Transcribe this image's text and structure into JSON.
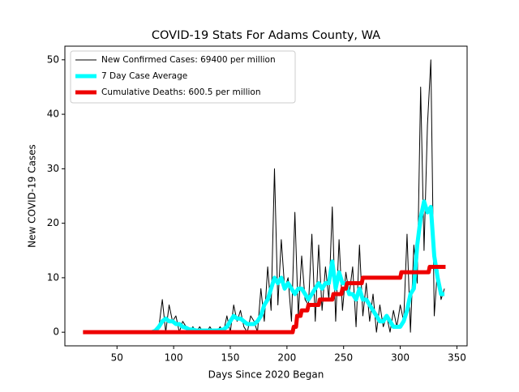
{
  "chart_data": {
    "type": "line",
    "title": "COVID-19 Stats For Adams County, WA",
    "xlabel": "Days Since 2020 Began",
    "ylabel": "New COVID-19 Cases",
    "xlim": [
      4,
      359
    ],
    "ylim": [
      -2.5,
      52.5
    ],
    "xticks": [
      50,
      100,
      150,
      200,
      250,
      300,
      350
    ],
    "yticks": [
      0,
      10,
      20,
      30,
      40,
      50
    ],
    "grid": false,
    "legend": "upper-left",
    "series": [
      {
        "name": "New Confirmed Cases: 69400 per million",
        "color": "#000000",
        "width": 1,
        "x": [
          81,
          84,
          87,
          90,
          93,
          96,
          99,
          102,
          105,
          108,
          111,
          114,
          117,
          120,
          123,
          126,
          129,
          132,
          135,
          138,
          141,
          144,
          147,
          150,
          153,
          156,
          159,
          162,
          165,
          168,
          171,
          174,
          177,
          180,
          183,
          186,
          189,
          192,
          195,
          198,
          201,
          204,
          207,
          210,
          213,
          216,
          219,
          222,
          225,
          228,
          231,
          234,
          237,
          240,
          243,
          246,
          249,
          252,
          255,
          258,
          261,
          264,
          267,
          270,
          273,
          276,
          279,
          282,
          285,
          288,
          291,
          294,
          297,
          300,
          303,
          306,
          309,
          312,
          315,
          318,
          321,
          324,
          327,
          330,
          333,
          336,
          339
        ],
        "values": [
          0,
          0,
          1,
          6,
          0,
          5,
          2,
          3,
          0,
          2,
          1,
          0,
          1,
          0,
          1,
          0,
          0,
          1,
          0,
          0,
          1,
          0,
          3,
          0,
          5,
          2,
          4,
          1,
          0,
          3,
          2,
          0,
          8,
          2,
          12,
          4,
          30,
          5,
          17,
          8,
          10,
          2,
          22,
          3,
          14,
          6,
          5,
          18,
          2,
          16,
          4,
          12,
          6,
          23,
          2,
          17,
          4,
          11,
          7,
          12,
          1,
          16,
          3,
          9,
          2,
          7,
          0,
          5,
          1,
          3,
          0,
          4,
          1,
          5,
          2,
          18,
          0,
          16,
          9,
          45,
          15,
          38,
          50,
          3,
          12,
          6,
          8
        ]
      },
      {
        "name": "7 Day Case Average",
        "color": "#00ffff",
        "width": 5,
        "x": [
          81,
          84,
          87,
          90,
          93,
          96,
          99,
          102,
          105,
          108,
          111,
          114,
          117,
          120,
          123,
          126,
          129,
          132,
          135,
          138,
          141,
          144,
          147,
          150,
          153,
          156,
          159,
          162,
          165,
          168,
          171,
          174,
          177,
          180,
          183,
          186,
          189,
          192,
          195,
          198,
          201,
          204,
          207,
          210,
          213,
          216,
          219,
          222,
          225,
          228,
          231,
          234,
          237,
          240,
          243,
          246,
          249,
          252,
          255,
          258,
          261,
          264,
          267,
          270,
          273,
          276,
          279,
          282,
          285,
          288,
          291,
          294,
          297,
          300,
          303,
          306,
          309,
          312,
          315,
          318,
          321,
          324,
          327,
          330,
          333,
          336,
          339
        ],
        "values": [
          0,
          0.3,
          1,
          2,
          2.5,
          2,
          2,
          1.5,
          1.5,
          1,
          0.8,
          0.5,
          0.5,
          0.3,
          0.3,
          0.3,
          0.3,
          0.3,
          0.3,
          0.3,
          0.4,
          0.5,
          1,
          2,
          3,
          2.5,
          2.5,
          2,
          1.5,
          1.5,
          1.5,
          2,
          3,
          5,
          6,
          8,
          10,
          9,
          10,
          8,
          9,
          8,
          7,
          8,
          8,
          7,
          6,
          7,
          8,
          9,
          8,
          9,
          9,
          13,
          8,
          11,
          9,
          9,
          7,
          7,
          6,
          8,
          6,
          6,
          5,
          4,
          3,
          2,
          2,
          3,
          2,
          1,
          1,
          1,
          2,
          4,
          7,
          8,
          16,
          21,
          24,
          22,
          23,
          14,
          10,
          7,
          7
        ]
      },
      {
        "name": "Cumulative Deaths: 600.5 per million",
        "color": "#ee0000",
        "width": 5,
        "x": [
          20,
          205,
          206,
          208,
          209,
          212,
          213,
          218,
          219,
          228,
          229,
          240,
          241,
          248,
          249,
          252,
          253,
          266,
          267,
          300,
          301,
          325,
          326,
          340
        ],
        "values": [
          0,
          0,
          1,
          1,
          3,
          3,
          4,
          4,
          5,
          5,
          6,
          6,
          7,
          7,
          8,
          8,
          9,
          9,
          10,
          10,
          11,
          11,
          12,
          12
        ]
      }
    ]
  }
}
